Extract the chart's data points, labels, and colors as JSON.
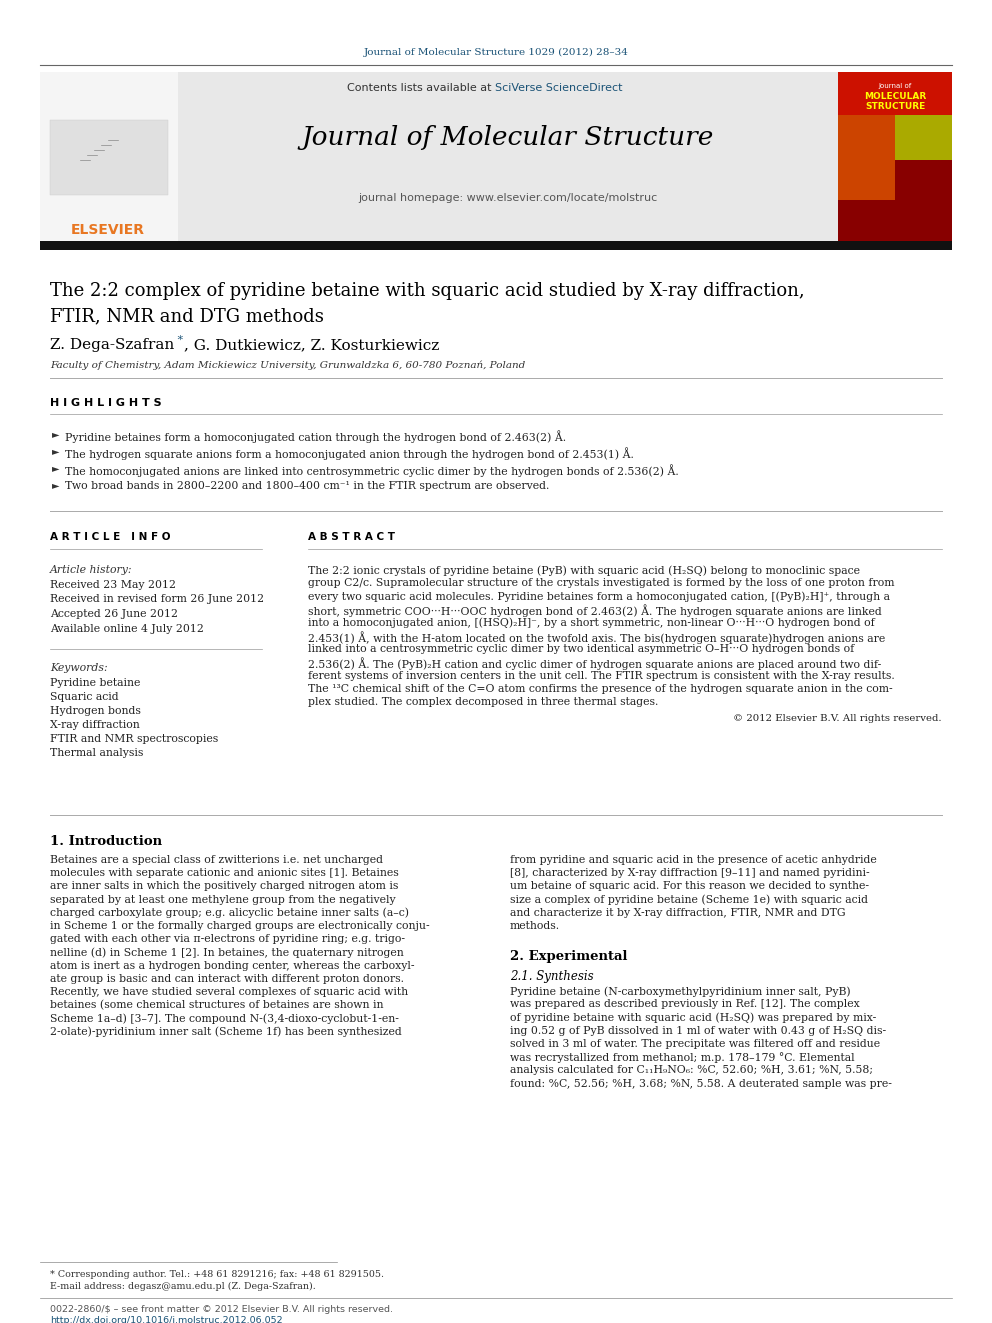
{
  "page_title_url": "Journal of Molecular Structure 1029 (2012) 28–34",
  "journal_name": "Journal of Molecular Structure",
  "contents_text": "Contents lists available at",
  "sciverse_text": "SciVerse ScienceDirect",
  "homepage_text": "journal homepage: www.elsevier.com/locate/molstruc",
  "paper_title_line1": "The 2:2 complex of pyridine betaine with squaric acid studied by X-ray diffraction,",
  "paper_title_line2": "FTIR, NMR and DTG methods",
  "authors": "Z. Dega-Szafran",
  "authors_star": " *",
  "authors2": ", G. Dutkiewicz, Z. Kosturkiewicz",
  "affiliation": "Faculty of Chemistry, Adam Mickiewicz University, Grunwaldzka 6, 60-780 Poznań, Poland",
  "highlights_title": "H I G H L I G H T S",
  "highlights": [
    "Pyridine betaines form a homoconjugated cation through the hydrogen bond of 2.463(2) Å.",
    "The hydrogen squarate anions form a homoconjugated anion through the hydrogen bond of 2.453(1) Å.",
    "The homoconjugated anions are linked into centrosymmetric cyclic dimer by the hydrogen bonds of 2.536(2) Å.",
    "Two broad bands in 2800–2200 and 1800–400 cm⁻¹ in the FTIR spectrum are observed."
  ],
  "article_info_title": "A R T I C L E   I N F O",
  "abstract_title": "A B S T R A C T",
  "article_history_label": "Article history:",
  "received1": "Received 23 May 2012",
  "received2": "Received in revised form 26 June 2012",
  "accepted": "Accepted 26 June 2012",
  "available": "Available online 4 July 2012",
  "keywords_label": "Keywords:",
  "keywords": [
    "Pyridine betaine",
    "Squaric acid",
    "Hydrogen bonds",
    "X-ray diffraction",
    "FTIR and NMR spectroscopies",
    "Thermal analysis"
  ],
  "abstract_lines": [
    "The 2:2 ionic crystals of pyridine betaine (PyB) with squaric acid (H₂SQ) belong to monoclinic space",
    "group C2/c. Supramolecular structure of the crystals investigated is formed by the loss of one proton from",
    "every two squaric acid molecules. Pyridine betaines form a homoconjugated cation, [(PyB)₂H]⁺, through a",
    "short, symmetric COO···H···OOC hydrogen bond of 2.463(2) Å. The hydrogen squarate anions are linked",
    "into a homoconjugated anion, [(HSQ)₂H]⁻, by a short symmetric, non-linear O···H···O hydrogen bond of",
    "2.453(1) Å, with the H-atom located on the twofold axis. The bis(hydrogen squarate)hydrogen anions are",
    "linked into a centrosymmetric cyclic dimer by two identical asymmetric O–H···O hydrogen bonds of",
    "2.536(2) Å. The (PyB)₂H cation and cyclic dimer of hydrogen squarate anions are placed around two dif-",
    "ferent systems of inversion centers in the unit cell. The FTIR spectrum is consistent with the X-ray results.",
    "The ¹³C chemical shift of the C=O atom confirms the presence of the hydrogen squarate anion in the com-",
    "plex studied. The complex decomposed in three thermal stages."
  ],
  "copyright": "© 2012 Elsevier B.V. All rights reserved.",
  "intro_title": "1. Introduction",
  "intro_col1_lines": [
    "Betaines are a special class of zwitterions i.e. net uncharged",
    "molecules with separate cationic and anionic sites [1]. Betaines",
    "are inner salts in which the positively charged nitrogen atom is",
    "separated by at least one methylene group from the negatively",
    "charged carboxylate group; e.g. alicyclic betaine inner salts (a–c)",
    "in Scheme 1 or the formally charged groups are electronically conju-",
    "gated with each other via π-electrons of pyridine ring; e.g. trigo-",
    "nelline (d) in Scheme 1 [2]. In betaines, the quaternary nitrogen",
    "atom is inert as a hydrogen bonding center, whereas the carboxyl-",
    "ate group is basic and can interact with different proton donors.",
    "Recently, we have studied several complexes of squaric acid with",
    "betaines (some chemical structures of betaines are shown in",
    "Scheme 1a–d) [3–7]. The compound N-(3,4-dioxo-cyclobut-1-en-",
    "2-olate)-pyridinium inner salt (Scheme 1f) has been synthesized"
  ],
  "intro_col2_lines": [
    "from pyridine and squaric acid in the presence of acetic anhydride",
    "[8], characterized by X-ray diffraction [9–11] and named pyridini-",
    "um betaine of squaric acid. For this reason we decided to synthe-",
    "size a complex of pyridine betaine (Scheme 1e) with squaric acid",
    "and characterize it by X-ray diffraction, FTIR, NMR and DTG",
    "methods."
  ],
  "experimental_title": "2. Experimental",
  "synthesis_title": "2.1. Synthesis",
  "synthesis_lines": [
    "Pyridine betaine (N-carboxymethylpyridinium inner salt, PyB)",
    "was prepared as described previously in Ref. [12]. The complex",
    "of pyridine betaine with squaric acid (H₂SQ) was prepared by mix-",
    "ing 0.52 g of PyB dissolved in 1 ml of water with 0.43 g of H₂SQ dis-",
    "solved in 3 ml of water. The precipitate was filtered off and residue",
    "was recrystallized from methanol; m.p. 178–179 °C. Elemental",
    "analysis calculated for C₁₁H₉NO₆: %C, 52.60; %H, 3.61; %N, 5.58;",
    "found: %C, 52.56; %H, 3.68; %N, 5.58. A deuterated sample was pre-"
  ],
  "footnote1": "* Corresponding author. Tel.: +48 61 8291216; fax: +48 61 8291505.",
  "footnote2": "E-mail address: degasz@amu.edu.pl (Z. Dega-Szafran).",
  "issn_text": "0022-2860/$ – see front matter © 2012 Elsevier B.V. All rights reserved.",
  "doi_text": "http://dx.doi.org/10.1016/j.molstruc.2012.06.052",
  "bg_color": "#ffffff",
  "link_color": "#1a5276",
  "elsevier_orange": "#e87722",
  "cover_red": "#cc1100"
}
